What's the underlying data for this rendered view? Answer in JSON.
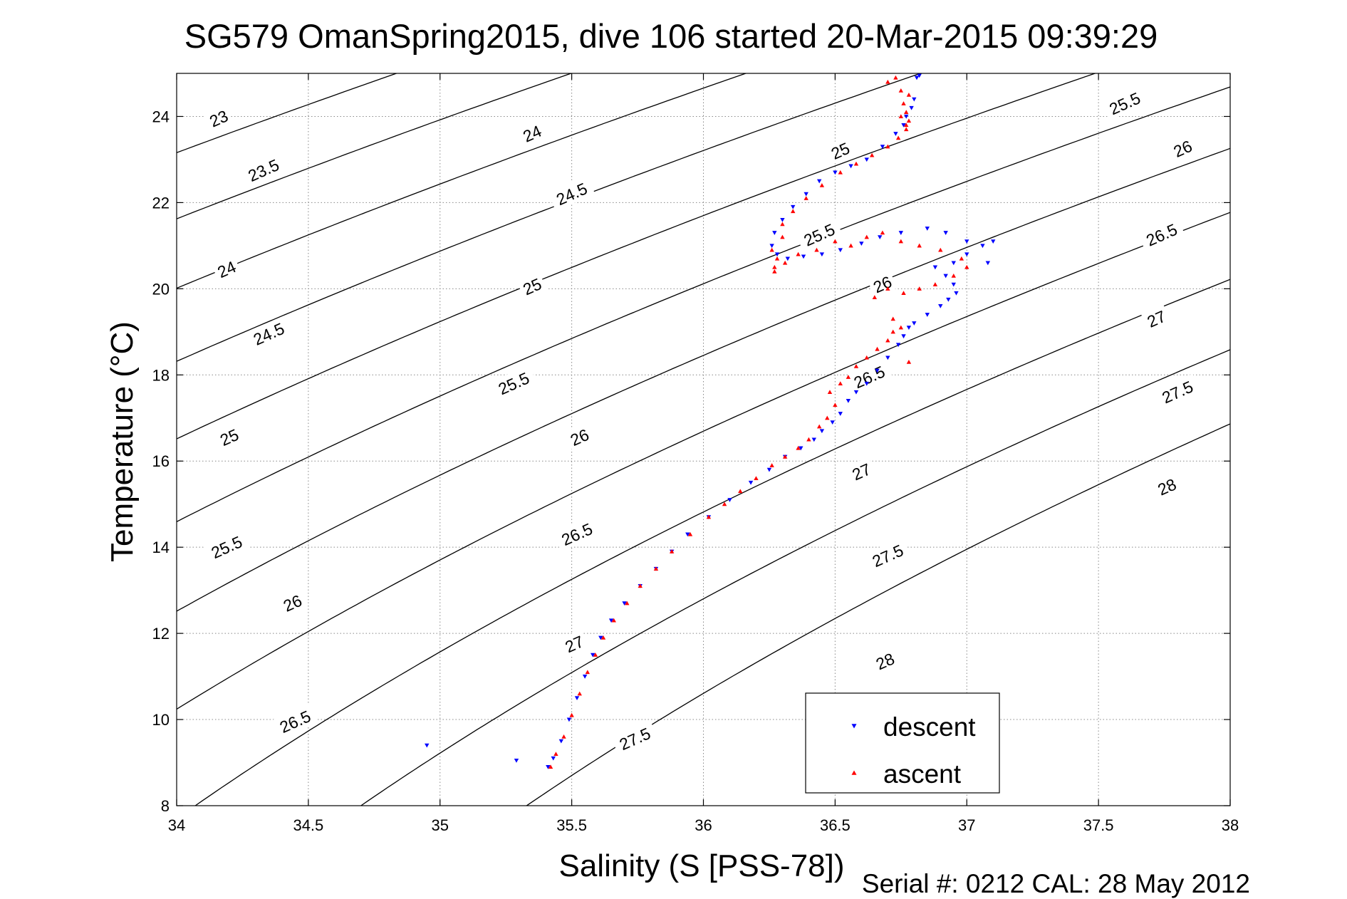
{
  "chart_data": {
    "type": "scatter",
    "title": "SG579 OmanSpring2015, dive 106 started 20-Mar-2015 09:39:29",
    "xlabel": "Salinity (S [PSS-78])",
    "ylabel": "Temperature (°C)",
    "xlim": [
      34,
      38
    ],
    "ylim": [
      8,
      25
    ],
    "x_ticks": [
      34,
      34.5,
      35,
      35.5,
      36,
      36.5,
      37,
      37.5,
      38
    ],
    "x_tick_labels": [
      "34",
      "34.5",
      "35",
      "35.5",
      "36",
      "36.5",
      "37",
      "37.5",
      "38"
    ],
    "y_ticks": [
      8,
      10,
      12,
      14,
      16,
      18,
      20,
      22,
      24
    ],
    "y_tick_labels": [
      "8",
      "10",
      "12",
      "14",
      "16",
      "18",
      "20",
      "22",
      "24"
    ],
    "grid": true,
    "legend_position": "bottom-right",
    "contours": {
      "levels": [
        23,
        23.5,
        24,
        24.5,
        25,
        25.5,
        26,
        26.5,
        27,
        27.5,
        28
      ],
      "labels": [
        {
          "text": "23",
          "s": 34.16,
          "t": 23.95
        },
        {
          "text": "23.5",
          "s": 34.33,
          "t": 22.75
        },
        {
          "text": "24",
          "s": 34.19,
          "t": 20.45
        },
        {
          "text": "24.5",
          "s": 34.35,
          "t": 18.95
        },
        {
          "text": "25",
          "s": 34.2,
          "t": 16.55
        },
        {
          "text": "25.5",
          "s": 34.19,
          "t": 14.0
        },
        {
          "text": "26",
          "s": 34.44,
          "t": 12.7
        },
        {
          "text": "26.5",
          "s": 34.45,
          "t": 9.95
        },
        {
          "text": "24",
          "s": 35.35,
          "t": 23.6
        },
        {
          "text": "24.5",
          "s": 35.5,
          "t": 22.2
        },
        {
          "text": "25",
          "s": 35.35,
          "t": 20.05
        },
        {
          "text": "25.5",
          "s": 35.28,
          "t": 17.8
        },
        {
          "text": "26",
          "s": 35.53,
          "t": 16.55
        },
        {
          "text": "26.5",
          "s": 35.52,
          "t": 14.3
        },
        {
          "text": "27",
          "s": 35.51,
          "t": 11.75
        },
        {
          "text": "27.5",
          "s": 35.74,
          "t": 9.55
        },
        {
          "text": "25",
          "s": 36.52,
          "t": 23.2
        },
        {
          "text": "25.5",
          "s": 36.44,
          "t": 21.25
        },
        {
          "text": "26",
          "s": 36.68,
          "t": 20.1
        },
        {
          "text": "26.5",
          "s": 36.63,
          "t": 17.95
        },
        {
          "text": "27",
          "s": 36.6,
          "t": 15.75
        },
        {
          "text": "27.5",
          "s": 36.7,
          "t": 13.8
        },
        {
          "text": "28",
          "s": 36.69,
          "t": 11.35
        },
        {
          "text": "25.5",
          "s": 37.6,
          "t": 24.3
        },
        {
          "text": "26",
          "s": 37.82,
          "t": 23.25
        },
        {
          "text": "26.5",
          "s": 37.74,
          "t": 21.25
        },
        {
          "text": "27",
          "s": 37.72,
          "t": 19.3
        },
        {
          "text": "27.5",
          "s": 37.8,
          "t": 17.6
        },
        {
          "text": "28",
          "s": 37.76,
          "t": 15.4
        }
      ]
    },
    "series": [
      {
        "name": "descent",
        "color": "#0000ff",
        "marker": "triangle-down",
        "x": [
          34.95,
          35.29,
          35.41,
          35.43,
          35.46,
          35.49,
          35.52,
          35.55,
          35.58,
          35.61,
          35.65,
          35.7,
          35.76,
          35.82,
          35.88,
          35.94,
          36.02,
          36.1,
          36.18,
          36.25,
          36.31,
          36.37,
          36.42,
          36.45,
          36.49,
          36.52,
          36.55,
          36.58,
          36.62,
          36.66,
          36.7,
          36.74,
          36.76,
          36.78,
          36.8,
          36.85,
          36.9,
          36.93,
          36.96,
          36.95,
          36.92,
          36.88,
          36.95,
          37.0,
          37.06,
          37.1,
          37.08,
          37.0,
          36.92,
          36.85,
          36.75,
          36.67,
          36.6,
          36.52,
          36.45,
          36.38,
          36.32,
          36.28,
          36.26,
          36.27,
          36.3,
          36.34,
          36.39,
          36.44,
          36.5,
          36.56,
          36.62,
          36.68,
          36.73,
          36.76,
          36.77,
          36.79,
          36.8,
          36.81,
          36.82
        ],
        "y": [
          9.4,
          9.05,
          8.9,
          9.1,
          9.5,
          10.0,
          10.5,
          11.0,
          11.5,
          11.9,
          12.3,
          12.7,
          13.1,
          13.5,
          13.9,
          14.3,
          14.7,
          15.1,
          15.5,
          15.8,
          16.1,
          16.3,
          16.5,
          16.7,
          16.9,
          17.1,
          17.4,
          17.6,
          17.8,
          18.1,
          18.4,
          18.7,
          18.9,
          19.1,
          19.2,
          19.4,
          19.6,
          19.75,
          19.9,
          20.1,
          20.3,
          20.5,
          20.6,
          20.8,
          21.0,
          21.1,
          20.6,
          21.1,
          21.3,
          21.4,
          21.3,
          21.2,
          21.05,
          20.9,
          20.8,
          20.75,
          20.7,
          20.8,
          21.0,
          21.3,
          21.6,
          21.9,
          22.2,
          22.5,
          22.7,
          22.85,
          23.0,
          23.3,
          23.6,
          23.8,
          24.0,
          24.2,
          24.4,
          24.9,
          24.95
        ]
      },
      {
        "name": "ascent",
        "color": "#ff0000",
        "marker": "triangle-up",
        "x": [
          35.42,
          35.44,
          35.47,
          35.5,
          35.53,
          35.56,
          35.59,
          35.62,
          35.66,
          35.71,
          35.76,
          35.82,
          35.88,
          35.95,
          36.02,
          36.08,
          36.14,
          36.2,
          36.26,
          36.31,
          36.36,
          36.4,
          36.44,
          36.47,
          36.5,
          36.48,
          36.52,
          36.55,
          36.58,
          36.62,
          36.66,
          36.7,
          36.72,
          36.75,
          36.78,
          36.72,
          36.65,
          36.7,
          36.76,
          36.82,
          36.88,
          36.95,
          37.0,
          36.98,
          36.9,
          36.82,
          36.75,
          36.68,
          36.62,
          36.56,
          36.5,
          36.43,
          36.36,
          36.31,
          36.27,
          36.26,
          36.3,
          36.28,
          36.27,
          36.3,
          36.34,
          36.39,
          36.45,
          36.52,
          36.58,
          36.64,
          36.7,
          36.74,
          36.77,
          36.78,
          36.77,
          36.76,
          36.75,
          36.73,
          36.7,
          36.78,
          36.75,
          36.77
        ],
        "y": [
          8.9,
          9.2,
          9.6,
          10.1,
          10.6,
          11.1,
          11.5,
          11.9,
          12.3,
          12.7,
          13.1,
          13.5,
          13.9,
          14.3,
          14.7,
          15.0,
          15.3,
          15.6,
          15.9,
          16.1,
          16.3,
          16.5,
          16.8,
          17.0,
          17.3,
          17.6,
          17.8,
          17.95,
          18.2,
          18.4,
          18.6,
          18.8,
          19.0,
          19.1,
          18.3,
          19.3,
          19.8,
          20.0,
          19.9,
          20.0,
          20.1,
          20.3,
          20.5,
          20.7,
          20.9,
          21.0,
          21.1,
          21.3,
          21.2,
          21.0,
          21.1,
          20.9,
          20.8,
          20.6,
          20.5,
          20.9,
          21.2,
          20.7,
          20.4,
          21.5,
          21.8,
          22.1,
          22.4,
          22.7,
          22.9,
          23.1,
          23.3,
          23.5,
          23.7,
          23.9,
          24.1,
          24.3,
          24.6,
          24.9,
          24.8,
          24.5,
          24.0,
          23.8
        ]
      }
    ]
  },
  "footer": {
    "serial": "Serial #: 0212  CAL: 28 May 2012"
  }
}
